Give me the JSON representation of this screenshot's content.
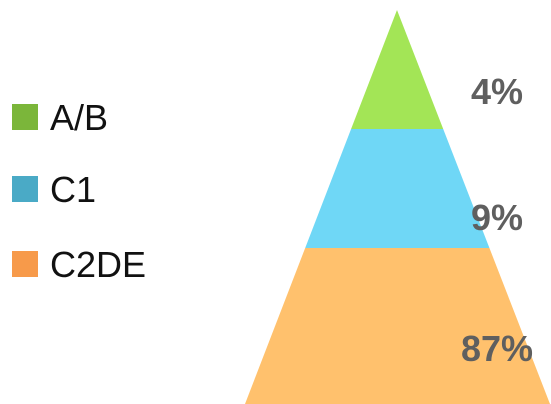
{
  "chart_data": {
    "type": "pyramid",
    "series": [
      {
        "name": "A/B",
        "value": 4,
        "label": "4%",
        "color": "#a3e556",
        "legend_color": "#7bb63a"
      },
      {
        "name": "C1",
        "value": 9,
        "label": "9%",
        "color": "#6fd7f6",
        "legend_color": "#4aaac6"
      },
      {
        "name": "C2DE",
        "value": 87,
        "label": "87%",
        "color": "#ffc16d",
        "legend_color": "#f79a4a"
      }
    ],
    "legend_position": "left"
  }
}
